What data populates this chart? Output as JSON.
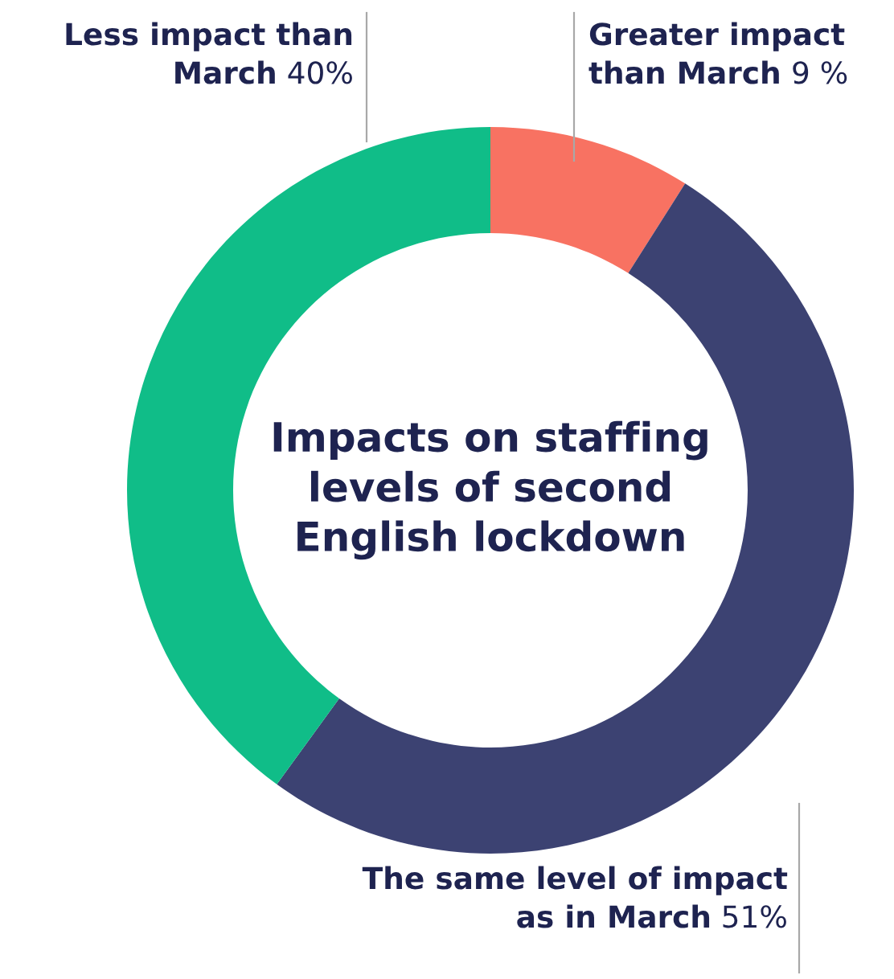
{
  "chart_data": {
    "type": "donut",
    "title": "Impacts on staffing\nlevels of second\nEnglish lockdown",
    "categories": [
      "Greater impact\nthan March",
      "The same level of impact\nas in March",
      "Less impact than\nMarch"
    ],
    "values": [
      9,
      51,
      40
    ],
    "colors": [
      "#f87262",
      "#3c4272",
      "#10bd88"
    ],
    "value_labels": [
      "9 %",
      "51%",
      "40%"
    ]
  }
}
